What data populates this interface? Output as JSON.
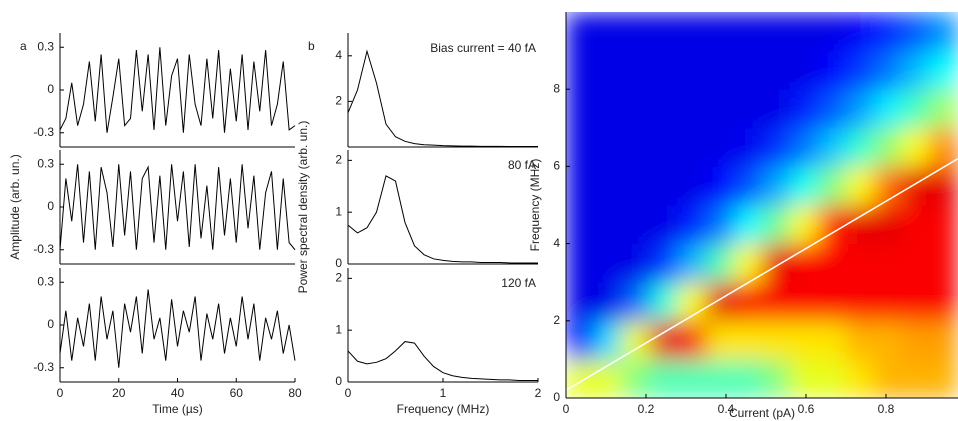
{
  "chart_data": [
    {
      "type": "line",
      "label": "a",
      "x": [
        0,
        2,
        4,
        6,
        8,
        10,
        12,
        14,
        16,
        18,
        20,
        22,
        24,
        26,
        28,
        30,
        32,
        34,
        36,
        38,
        40,
        42,
        44,
        46,
        48,
        50,
        52,
        54,
        56,
        58,
        60,
        62,
        64,
        66,
        68,
        70,
        72,
        74,
        76,
        78,
        80
      ],
      "series": [
        {
          "color": "#000000",
          "values": [
            -0.28,
            -0.2,
            0.05,
            -0.25,
            -0.1,
            0.2,
            -0.22,
            0.25,
            -0.3,
            -0.05,
            0.22,
            -0.25,
            -0.2,
            0.28,
            -0.15,
            0.25,
            -0.28,
            0.3,
            -0.25,
            0.1,
            0.22,
            -0.3,
            0.25,
            -0.1,
            -0.25,
            0.22,
            -0.2,
            0.28,
            -0.3,
            0.15,
            -0.22,
            0.25,
            -0.28,
            0.2,
            -0.15,
            0.28,
            -0.25,
            -0.1,
            0.2,
            -0.28,
            -0.25
          ]
        }
      ],
      "xlim": [
        0,
        80
      ],
      "ylim": [
        -0.4,
        0.4
      ],
      "yticks": [
        -0.3,
        0,
        0.3
      ]
    },
    {
      "type": "line",
      "ylabel": "Amplitude (arb. un.)",
      "x": [
        0,
        2,
        4,
        6,
        8,
        10,
        12,
        14,
        16,
        18,
        20,
        22,
        24,
        26,
        28,
        30,
        32,
        34,
        36,
        38,
        40,
        42,
        44,
        46,
        48,
        50,
        52,
        54,
        56,
        58,
        60,
        62,
        64,
        66,
        68,
        70,
        72,
        74,
        76,
        78,
        80
      ],
      "series": [
        {
          "color": "#000000",
          "values": [
            -0.3,
            0.2,
            -0.1,
            0.3,
            -0.25,
            0.25,
            -0.3,
            0.28,
            0.1,
            -0.28,
            0.3,
            -0.2,
            0.25,
            -0.3,
            0.2,
            0.28,
            -0.25,
            0.22,
            -0.3,
            0.3,
            -0.1,
            0.25,
            -0.28,
            0.3,
            -0.22,
            0.15,
            -0.3,
            0.28,
            -0.2,
            0.2,
            -0.25,
            0.3,
            -0.15,
            0.22,
            -0.3,
            0.1,
            0.25,
            -0.3,
            0.2,
            -0.25,
            -0.3
          ]
        }
      ],
      "xlim": [
        0,
        80
      ],
      "ylim": [
        -0.4,
        0.4
      ],
      "yticks": [
        -0.3,
        0,
        0.3
      ]
    },
    {
      "type": "line",
      "xlabel": "Time (µs)",
      "x": [
        0,
        2,
        4,
        6,
        8,
        10,
        12,
        14,
        16,
        18,
        20,
        22,
        24,
        26,
        28,
        30,
        32,
        34,
        36,
        38,
        40,
        42,
        44,
        46,
        48,
        50,
        52,
        54,
        56,
        58,
        60,
        62,
        64,
        66,
        68,
        70,
        72,
        74,
        76,
        78,
        80
      ],
      "series": [
        {
          "color": "#000000",
          "values": [
            -0.2,
            0.1,
            -0.25,
            0.05,
            -0.15,
            0.15,
            -0.25,
            0.2,
            -0.1,
            0.1,
            -0.3,
            0.15,
            -0.05,
            0.2,
            -0.2,
            0.25,
            -0.1,
            0.05,
            -0.25,
            0.18,
            -0.15,
            0.1,
            -0.05,
            0.2,
            -0.25,
            0.08,
            -0.1,
            0.15,
            -0.2,
            0.05,
            -0.15,
            0.2,
            -0.1,
            0.15,
            -0.25,
            0.05,
            -0.1,
            0.1,
            -0.2,
            0,
            -0.25
          ]
        }
      ],
      "xlim": [
        0,
        80
      ],
      "ylim": [
        -0.4,
        0.4
      ],
      "xticks": [
        0,
        20,
        40,
        60,
        80
      ],
      "yticks": [
        -0.3,
        0,
        0.3
      ]
    },
    {
      "type": "line",
      "label": "b",
      "annotation": "Bias current = 40 fA",
      "x": [
        0,
        0.1,
        0.2,
        0.3,
        0.4,
        0.5,
        0.6,
        0.7,
        0.8,
        0.9,
        1,
        1.1,
        1.2,
        1.3,
        1.4,
        1.5,
        1.6,
        1.7,
        1.8,
        1.9,
        2
      ],
      "series": [
        {
          "color": "#000000",
          "values": [
            1.5,
            2.5,
            4.2,
            2.8,
            1.0,
            0.45,
            0.25,
            0.15,
            0.1,
            0.08,
            0.06,
            0.05,
            0.04,
            0.04,
            0.03,
            0.03,
            0.03,
            0.02,
            0.02,
            0.02,
            0.02
          ]
        }
      ],
      "xlim": [
        0,
        2
      ],
      "ylim": [
        0,
        5
      ],
      "yticks": [
        2,
        4
      ]
    },
    {
      "type": "line",
      "annotation": "80 fA",
      "ylabel": "Power spectral density (arb. un.)",
      "x": [
        0,
        0.1,
        0.2,
        0.3,
        0.4,
        0.5,
        0.6,
        0.7,
        0.8,
        0.9,
        1,
        1.1,
        1.2,
        1.3,
        1.4,
        1.5,
        1.6,
        1.7,
        1.8,
        1.9,
        2
      ],
      "series": [
        {
          "color": "#000000",
          "values": [
            0.75,
            0.6,
            0.7,
            1.0,
            1.7,
            1.6,
            0.8,
            0.35,
            0.18,
            0.1,
            0.07,
            0.05,
            0.04,
            0.04,
            0.03,
            0.03,
            0.03,
            0.02,
            0.02,
            0.02,
            0.02
          ]
        }
      ],
      "xlim": [
        0,
        2
      ],
      "ylim": [
        0,
        2.2
      ],
      "yticks": [
        0,
        1,
        2
      ]
    },
    {
      "type": "line",
      "annotation": "120 fA",
      "xlabel": "Frequency (MHz)",
      "x": [
        0,
        0.1,
        0.2,
        0.3,
        0.4,
        0.5,
        0.6,
        0.7,
        0.8,
        0.9,
        1,
        1.1,
        1.2,
        1.3,
        1.4,
        1.5,
        1.6,
        1.7,
        1.8,
        1.9,
        2
      ],
      "series": [
        {
          "color": "#000000",
          "values": [
            0.6,
            0.4,
            0.35,
            0.38,
            0.45,
            0.6,
            0.78,
            0.75,
            0.5,
            0.3,
            0.18,
            0.12,
            0.09,
            0.07,
            0.06,
            0.05,
            0.04,
            0.04,
            0.03,
            0.03,
            0.03
          ]
        }
      ],
      "xlim": [
        0,
        2
      ],
      "ylim": [
        0,
        2.2
      ],
      "xticks": [
        0,
        1,
        2
      ],
      "yticks": [
        0,
        1,
        2
      ]
    },
    {
      "type": "heatmap",
      "colormap": "jet",
      "xlabel": "Current (pA)",
      "ylabel": "Frequency (MHz)",
      "xbins": [
        0,
        0.07,
        0.14,
        0.21,
        0.28,
        0.35,
        0.42,
        0.49,
        0.56,
        0.63,
        0.7,
        0.77,
        0.84,
        0.91,
        0.98
      ],
      "ybins": [
        0,
        1,
        2,
        3,
        4,
        5,
        6,
        7,
        8,
        9,
        10
      ],
      "z": [
        [
          0.6,
          0.6,
          0.5,
          0.45,
          0.45,
          0.45,
          0.45,
          0.5,
          0.6,
          0.6,
          0.65,
          0.7,
          0.7,
          0.7
        ],
        [
          0.14,
          0.34,
          0.61,
          0.9,
          0.88,
          0.65,
          0.65,
          0.65,
          0.65,
          0.65,
          0.7,
          0.7,
          0.72,
          0.72
        ],
        [
          0.1,
          0.1,
          0.23,
          0.41,
          0.62,
          0.9,
          0.88,
          0.88,
          0.88,
          0.88,
          0.88,
          0.88,
          0.88,
          0.88
        ],
        [
          0.1,
          0.1,
          0.1,
          0.18,
          0.3,
          0.45,
          0.63,
          0.9,
          0.88,
          0.88,
          0.88,
          0.88,
          0.88,
          0.88
        ],
        [
          0.1,
          0.1,
          0.1,
          0.1,
          0.15,
          0.24,
          0.37,
          0.48,
          0.63,
          0.85,
          0.9,
          0.9,
          0.88,
          0.88
        ],
        [
          0.1,
          0.1,
          0.1,
          0.1,
          0.1,
          0.13,
          0.2,
          0.29,
          0.39,
          0.5,
          0.63,
          0.77,
          0.9,
          0.9
        ],
        [
          0.1,
          0.1,
          0.1,
          0.1,
          0.1,
          0.1,
          0.11,
          0.17,
          0.24,
          0.32,
          0.42,
          0.52,
          0.63,
          0.75
        ],
        [
          0.1,
          0.1,
          0.1,
          0.1,
          0.1,
          0.1,
          0.1,
          0.1,
          0.15,
          0.21,
          0.28,
          0.36,
          0.44,
          0.53
        ],
        [
          0.1,
          0.1,
          0.1,
          0.1,
          0.1,
          0.1,
          0.1,
          0.1,
          0.1,
          0.13,
          0.18,
          0.24,
          0.31,
          0.38
        ],
        [
          0.1,
          0.1,
          0.1,
          0.1,
          0.1,
          0.1,
          0.1,
          0.1,
          0.1,
          0.1,
          0.12,
          0.16,
          0.21,
          0.27
        ]
      ],
      "line": {
        "color": "#ffffff",
        "x": [
          0,
          0.98
        ],
        "y": [
          0.2,
          6.2
        ]
      },
      "xlim": [
        0,
        0.98
      ],
      "ylim": [
        0,
        10
      ],
      "xticks": [
        0,
        0.2,
        0.4,
        0.6,
        0.8
      ],
      "yticks": [
        0,
        2,
        4,
        6,
        8
      ]
    }
  ]
}
